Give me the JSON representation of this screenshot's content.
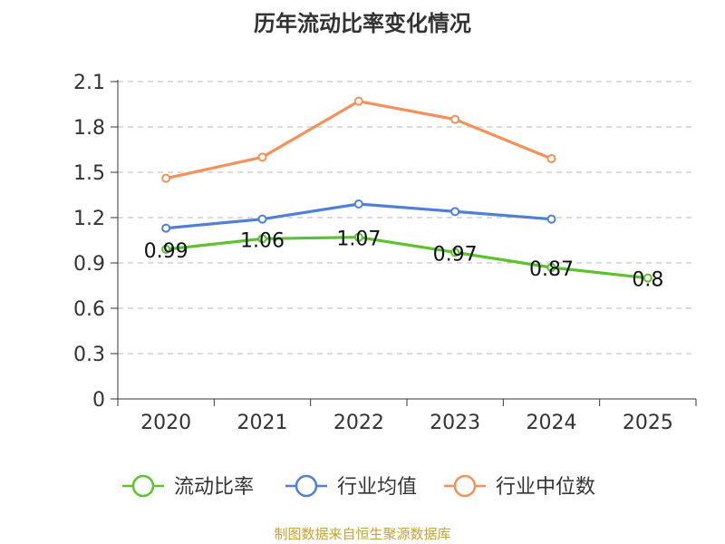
{
  "chart_data": {
    "type": "line",
    "title": "历年流动比率变化情况",
    "categories": [
      "2020",
      "2021",
      "2022",
      "2023",
      "2024",
      "2025"
    ],
    "ylim": [
      0,
      2.1
    ],
    "yticks": [
      "0",
      "0.3",
      "0.6",
      "0.9",
      "1.2",
      "1.5",
      "1.8",
      "2.1"
    ],
    "grid": true,
    "legend_position": "bottom",
    "series": [
      {
        "name": "流动比率",
        "color": "#5cc22e",
        "values": [
          0.99,
          1.06,
          1.07,
          0.97,
          0.87,
          0.8
        ],
        "labels": [
          "0.99",
          "1.06",
          "1.07",
          "0.97",
          "0.87",
          "0.8"
        ]
      },
      {
        "name": "行业均值",
        "color": "#4f80d6",
        "values": [
          1.13,
          1.19,
          1.29,
          1.24,
          1.19,
          null
        ]
      },
      {
        "name": "行业中位数",
        "color": "#f5905a",
        "values": [
          1.46,
          1.6,
          1.97,
          1.85,
          1.59,
          null
        ]
      }
    ]
  },
  "footer": {
    "source": "制图数据来自恒生聚源数据库"
  }
}
